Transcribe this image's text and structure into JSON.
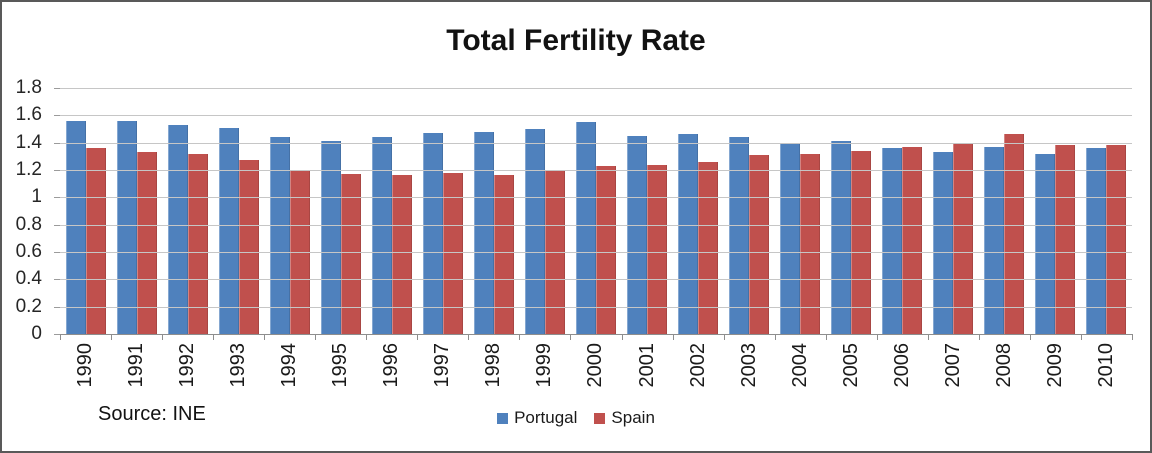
{
  "frame": {
    "border_color": "#595959",
    "background": "#ffffff"
  },
  "chart_data": {
    "type": "bar",
    "title": "Total Fertility Rate",
    "source": "Source: INE",
    "xlabel": "",
    "ylabel": "",
    "categories": [
      "1990",
      "1991",
      "1992",
      "1993",
      "1994",
      "1995",
      "1996",
      "1997",
      "1998",
      "1999",
      "2000",
      "2001",
      "2002",
      "2003",
      "2004",
      "2005",
      "2006",
      "2007",
      "2008",
      "2009",
      "2010"
    ],
    "series": [
      {
        "name": "Portugal",
        "color": "#4F81BD",
        "values": [
          1.56,
          1.56,
          1.53,
          1.51,
          1.44,
          1.41,
          1.44,
          1.47,
          1.48,
          1.5,
          1.55,
          1.45,
          1.46,
          1.44,
          1.4,
          1.41,
          1.36,
          1.33,
          1.37,
          1.32,
          1.36
        ]
      },
      {
        "name": "Spain",
        "color": "#C0504D",
        "values": [
          1.36,
          1.33,
          1.32,
          1.27,
          1.2,
          1.17,
          1.16,
          1.18,
          1.16,
          1.19,
          1.23,
          1.24,
          1.26,
          1.31,
          1.32,
          1.34,
          1.37,
          1.39,
          1.46,
          1.38,
          1.38
        ]
      }
    ],
    "ylim": [
      0,
      1.8
    ],
    "ytick_values": [
      1.8,
      1.6,
      1.4,
      1.2,
      1.0,
      0.8,
      0.6,
      0.4,
      0.2,
      0
    ],
    "ytick_labels": [
      "1.8",
      "1.6",
      "1.4",
      "1.2",
      "1",
      "0.8",
      "0.6",
      "0.4",
      "0.2",
      "0"
    ],
    "grid": true,
    "gridline_color": "#c6c6c6",
    "axis_color": "#8e8e8e",
    "legend_position": "bottom-center"
  }
}
